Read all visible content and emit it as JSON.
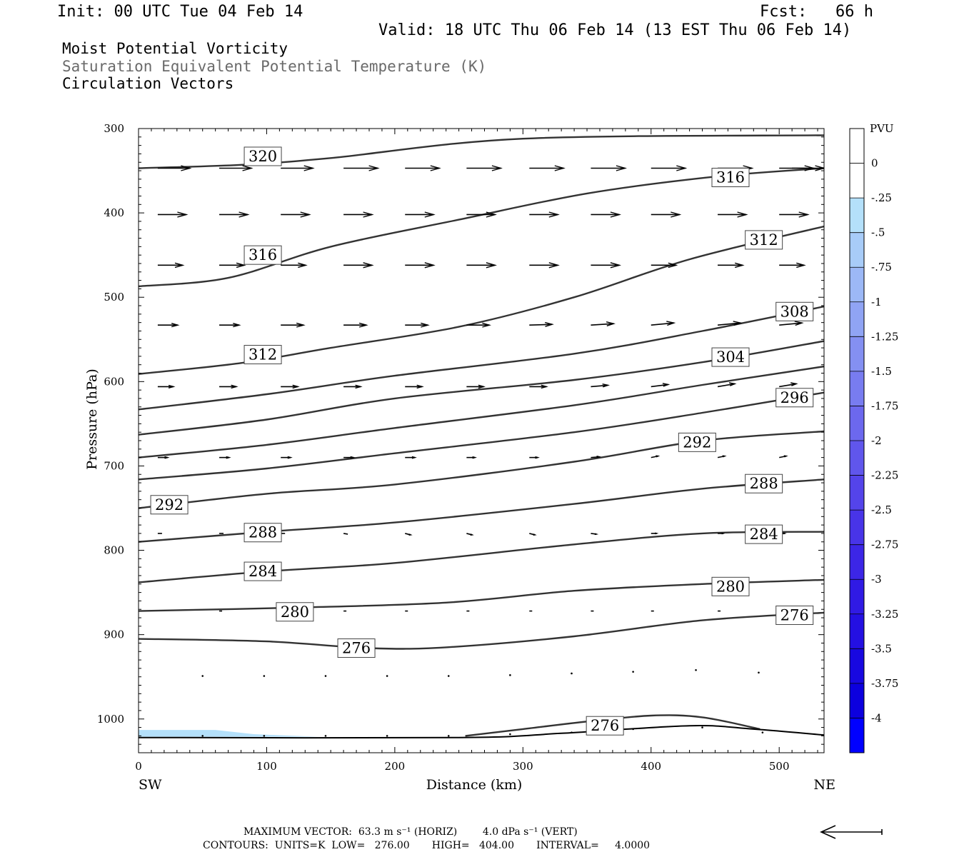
{
  "header": {
    "init": "Init: 00 UTC Tue 04 Feb 14",
    "fcst": "Fcst:   66 h",
    "valid": "Valid: 18 UTC Thu 06 Feb 14 (13 EST Thu 06 Feb 14)",
    "line1": "Moist Potential Vorticity",
    "line2": "Saturation Equivalent Potential Temperature (K)",
    "line3": "Circulation Vectors"
  },
  "footer": {
    "max_vector": "MAXIMUM VECTOR:  63.3 m s⁻¹ (HORIZ)        4.0 dPa s⁻¹ (VERT)",
    "contours": "CONTOURS:  UNITS=K  LOW=   276.00       HIGH=   404.00       INTERVAL=     4.0000"
  },
  "chart_data": {
    "type": "cross-section",
    "xlabel": "Distance (km)",
    "ylabel": "Pressure (hPa)",
    "xlim": [
      0,
      535
    ],
    "ylim": [
      1040,
      300
    ],
    "x_ticks": [
      "0",
      "100",
      "200",
      "300",
      "400",
      "500"
    ],
    "y_ticks": [
      "300",
      "400",
      "500",
      "600",
      "700",
      "800",
      "900",
      "1000"
    ],
    "x_end_labels": {
      "left": "SW",
      "right": "NE"
    },
    "colorbar": {
      "unit": "PVU",
      "labels": [
        "0",
        "-.25",
        "-.5",
        "-.75",
        "-1",
        "-1.25",
        "-1.5",
        "-1.75",
        "-2",
        "-2.25",
        "-2.5",
        "-2.75",
        "-3",
        "-3.25",
        "-3.5",
        "-3.75",
        "-4"
      ],
      "colors": [
        "#ffffff",
        "#ffffff",
        "#b4e0fa",
        "#a8ccf8",
        "#9cb8f6",
        "#90a4f4",
        "#8490f2",
        "#787cf0",
        "#6c68ee",
        "#6056ec",
        "#5444ea",
        "#4834e8",
        "#3c26e6",
        "#301ae4",
        "#2410e2",
        "#1808e0",
        "#0c00de",
        "#0000ff"
      ]
    },
    "contours": [
      {
        "value": 320,
        "label": "320",
        "points": [
          [
            0,
            347
          ],
          [
            80,
            343
          ],
          [
            150,
            335
          ],
          [
            300,
            312
          ],
          [
            535,
            308
          ]
        ],
        "label_pos": [
          97,
          333
        ]
      },
      {
        "value": 316,
        "label": "316",
        "points": [
          [
            0,
            487
          ],
          [
            70,
            477
          ],
          [
            150,
            440
          ],
          [
            250,
            408
          ],
          [
            350,
            377
          ],
          [
            450,
            357
          ],
          [
            535,
            347
          ]
        ],
        "label_pos": [
          97,
          450
        ]
      },
      {
        "value": 316,
        "label": "316",
        "points": [],
        "label_pos": [
          462,
          358
        ]
      },
      {
        "value": 312,
        "label": "312",
        "points": [
          [
            0,
            591
          ],
          [
            80,
            578
          ],
          [
            150,
            560
          ],
          [
            250,
            535
          ],
          [
            340,
            500
          ],
          [
            430,
            455
          ],
          [
            535,
            416
          ]
        ],
        "label_pos": [
          97,
          568
        ],
        "label_pos2": [
          488,
          432
        ]
      },
      {
        "value": 308,
        "label": "308",
        "points": [
          [
            0,
            633
          ],
          [
            100,
            615
          ],
          [
            200,
            593
          ],
          [
            340,
            567
          ],
          [
            440,
            540
          ],
          [
            535,
            511
          ]
        ],
        "label_pos": [
          512,
          517
        ]
      },
      {
        "value": 304,
        "label": "304",
        "points": [
          [
            0,
            663
          ],
          [
            100,
            645
          ],
          [
            200,
            620
          ],
          [
            340,
            598
          ],
          [
            440,
            577
          ],
          [
            535,
            552
          ]
        ],
        "label_pos": [
          462,
          571
        ]
      },
      {
        "value": 300,
        "label": "",
        "points": [
          [
            0,
            690
          ],
          [
            100,
            675
          ],
          [
            200,
            655
          ],
          [
            340,
            628
          ],
          [
            440,
            604
          ],
          [
            535,
            582
          ]
        ]
      },
      {
        "value": 296,
        "label": "296",
        "points": [
          [
            0,
            716
          ],
          [
            100,
            703
          ],
          [
            200,
            685
          ],
          [
            340,
            660
          ],
          [
            440,
            637
          ],
          [
            535,
            613
          ]
        ],
        "label_pos": [
          512,
          619
        ]
      },
      {
        "value": 292,
        "label": "292",
        "points": [
          [
            0,
            750
          ],
          [
            100,
            733
          ],
          [
            200,
            722
          ],
          [
            340,
            695
          ],
          [
            440,
            670
          ],
          [
            535,
            659
          ]
        ],
        "label_pos": [
          24,
          746
        ],
        "label_pos2": [
          436,
          672
        ]
      },
      {
        "value": 288,
        "label": "288",
        "points": [
          [
            0,
            790
          ],
          [
            100,
            778
          ],
          [
            200,
            767
          ],
          [
            340,
            745
          ],
          [
            440,
            727
          ],
          [
            535,
            716
          ]
        ],
        "label_pos": [
          97,
          779
        ],
        "label_pos2": [
          488,
          721
        ]
      },
      {
        "value": 284,
        "label": "284",
        "points": [
          [
            0,
            838
          ],
          [
            100,
            825
          ],
          [
            200,
            815
          ],
          [
            340,
            793
          ],
          [
            440,
            780
          ],
          [
            535,
            778
          ]
        ],
        "label_pos": [
          97,
          825
        ],
        "label_pos2": [
          488,
          781
        ]
      },
      {
        "value": 280,
        "label": "280",
        "points": [
          [
            0,
            872
          ],
          [
            120,
            868
          ],
          [
            240,
            862
          ],
          [
            340,
            848
          ],
          [
            440,
            840
          ],
          [
            535,
            835
          ]
        ],
        "label_pos": [
          122,
          873
        ],
        "label_pos2": [
          462,
          843
        ]
      },
      {
        "value": 276,
        "label": "276",
        "points": [
          [
            0,
            905
          ],
          [
            100,
            908
          ],
          [
            180,
            916
          ],
          [
            240,
            915
          ],
          [
            340,
            902
          ],
          [
            440,
            883
          ],
          [
            535,
            874
          ]
        ],
        "label_pos": [
          170,
          916
        ],
        "label_pos2": [
          512,
          877
        ]
      },
      {
        "value": 276,
        "label": "276",
        "points": [
          [
            255,
            1020
          ],
          [
            300,
            1012
          ],
          [
            350,
            1003
          ],
          [
            400,
            996
          ],
          [
            440,
            998
          ],
          [
            485,
            1012
          ]
        ],
        "label_pos": [
          364,
          1008
        ]
      }
    ],
    "surface": [
      [
        0,
        1022
      ],
      [
        250,
        1022
      ],
      [
        330,
        1017
      ],
      [
        430,
        1008
      ],
      [
        480,
        1012
      ],
      [
        535,
        1019
      ]
    ],
    "pv_shading": [
      [
        0,
        1013
      ],
      [
        60,
        1013
      ],
      [
        90,
        1018
      ],
      [
        140,
        1021
      ],
      [
        0,
        1021
      ]
    ],
    "vector_rows": [
      {
        "pressure": 347,
        "x": [
          15,
          63,
          111,
          160,
          208,
          256,
          305,
          353,
          400,
          452,
          500,
          535
        ],
        "len": [
          45,
          45,
          45,
          48,
          48,
          48,
          48,
          48,
          48,
          48,
          48,
          45
        ],
        "dy": [
          0,
          0,
          0,
          0,
          0,
          0,
          0,
          0,
          0,
          0,
          0,
          0
        ]
      },
      {
        "pressure": 402,
        "x": [
          15,
          63,
          111,
          160,
          208,
          256,
          305,
          353,
          400,
          452,
          500
        ],
        "len": [
          40,
          40,
          40,
          40,
          40,
          40,
          40,
          40,
          40,
          40,
          40
        ],
        "dy": [
          0,
          0,
          0,
          0,
          0,
          0,
          0,
          0,
          0,
          0,
          0
        ]
      },
      {
        "pressure": 462,
        "x": [
          15,
          63,
          111,
          160,
          208,
          256,
          305,
          353,
          400,
          452,
          500
        ],
        "len": [
          35,
          35,
          35,
          40,
          40,
          40,
          40,
          40,
          35,
          35,
          35
        ],
        "dy": [
          0,
          0,
          0,
          0,
          0,
          0,
          0,
          0,
          0,
          0,
          0
        ]
      },
      {
        "pressure": 533,
        "x": [
          15,
          63,
          111,
          160,
          208,
          256,
          305,
          353,
          400,
          452,
          500
        ],
        "len": [
          28,
          28,
          32,
          32,
          32,
          32,
          32,
          32,
          32,
          32,
          32
        ],
        "dy": [
          0,
          0,
          0,
          0,
          0,
          0,
          -1,
          -2,
          -3,
          -3,
          -3
        ]
      },
      {
        "pressure": 606,
        "x": [
          15,
          63,
          111,
          160,
          208,
          256,
          305,
          353,
          400,
          452,
          500
        ],
        "len": [
          22,
          24,
          24,
          24,
          24,
          24,
          24,
          24,
          24,
          24,
          24
        ],
        "dy": [
          0,
          0,
          0,
          0,
          0,
          0,
          0,
          -2,
          -3,
          -4,
          -4
        ]
      },
      {
        "pressure": 690,
        "x": [
          15,
          63,
          111,
          160,
          208,
          256,
          305,
          353,
          400,
          452,
          500
        ],
        "len": [
          14,
          14,
          14,
          14,
          14,
          12,
          12,
          12,
          10,
          10,
          10
        ],
        "dy": [
          0,
          0,
          0,
          0,
          0,
          0,
          0,
          -1,
          -2,
          -2,
          -2
        ]
      },
      {
        "pressure": 780,
        "x": [
          15,
          63,
          111,
          160,
          208,
          256,
          305,
          353,
          400,
          452,
          500
        ],
        "len": [
          6,
          6,
          6,
          6,
          8,
          8,
          8,
          8,
          8,
          8,
          8
        ],
        "dy": [
          0,
          0,
          0,
          1,
          2,
          2,
          2,
          1,
          0,
          0,
          0
        ]
      },
      {
        "pressure": 872,
        "x": [
          63,
          111,
          160,
          208,
          256,
          305,
          353,
          400,
          452,
          500
        ],
        "len": [
          4,
          4,
          4,
          4,
          4,
          4,
          4,
          4,
          4,
          4
        ],
        "dy": [
          0,
          0,
          0,
          0,
          0,
          0,
          0,
          0,
          0,
          0
        ]
      }
    ],
    "dots": [
      [
        50,
        949
      ],
      [
        98,
        949
      ],
      [
        146,
        949
      ],
      [
        194,
        949
      ],
      [
        242,
        949
      ],
      [
        290,
        948
      ],
      [
        338,
        946
      ],
      [
        386,
        944
      ],
      [
        435,
        942
      ],
      [
        484,
        945
      ],
      [
        50,
        1020
      ],
      [
        98,
        1020
      ],
      [
        146,
        1020
      ],
      [
        194,
        1020
      ],
      [
        242,
        1020
      ],
      [
        290,
        1018
      ],
      [
        338,
        1016
      ],
      [
        386,
        1012
      ],
      [
        440,
        1010
      ],
      [
        487,
        1016
      ]
    ],
    "max_vector_arrow": "reference arrow (63.3 m s-1)"
  }
}
